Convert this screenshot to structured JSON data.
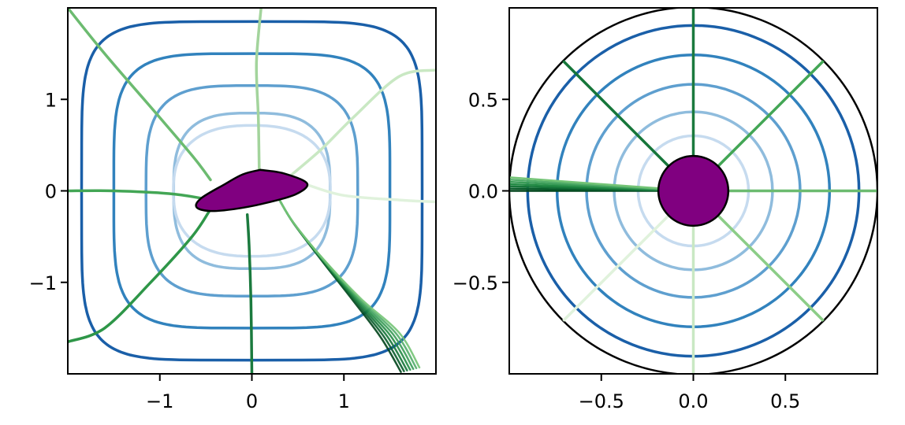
{
  "chart_data": [
    {
      "type": "line",
      "title": "",
      "xlabel": "",
      "ylabel": "",
      "xlim": [
        -2,
        2
      ],
      "ylim": [
        -2,
        2
      ],
      "xticks": [
        {
          "value": -1,
          "label": "−1"
        },
        {
          "value": 0,
          "label": "0"
        },
        {
          "value": 1,
          "label": "1"
        }
      ],
      "yticks": [
        {
          "value": 1,
          "label": "1"
        },
        {
          "value": 0,
          "label": "0"
        },
        {
          "value": -1,
          "label": "−1"
        }
      ],
      "grid": false,
      "legend": "none",
      "contours": [
        {
          "a": 1.85,
          "p": 5.5,
          "color": "#1a5fa8"
        },
        {
          "a": 1.5,
          "p": 4.5,
          "color": "#3182bd"
        },
        {
          "a": 1.15,
          "p": 3.6,
          "color": "#5e9fcf"
        },
        {
          "a": 0.85,
          "p": 3.0,
          "color": "#8fbcdd"
        },
        {
          "a": 0.55,
          "p": 2.5,
          "color": "#c6dbef",
          "sx": 1.55,
          "sy": 1.3
        }
      ],
      "streamlines": [
        {
          "color": "#1b7a3e",
          "points": [
            [
              0.0,
              -2.0
            ],
            [
              -0.01,
              -1.2
            ],
            [
              -0.03,
              -0.6
            ],
            [
              -0.05,
              -0.26
            ]
          ]
        },
        {
          "color": "#2e9648",
          "points": [
            [
              -2.0,
              -1.65
            ],
            [
              -1.6,
              -1.5
            ],
            [
              -1.1,
              -1.0
            ],
            [
              -0.65,
              -0.5
            ],
            [
              -0.45,
              -0.2
            ]
          ]
        },
        {
          "color": "#43a655",
          "points": [
            [
              -2.0,
              0.0
            ],
            [
              -1.5,
              0.0
            ],
            [
              -0.9,
              -0.03
            ],
            [
              -0.55,
              -0.08
            ]
          ]
        },
        {
          "color": "#6cbb70",
          "points": [
            [
              -2.0,
              2.0
            ],
            [
              -1.6,
              1.5
            ],
            [
              -1.0,
              0.8
            ],
            [
              -0.62,
              0.35
            ],
            [
              -0.45,
              0.12
            ]
          ]
        },
        {
          "color": "#a3d49c",
          "points": [
            [
              0.1,
              2.0
            ],
            [
              0.05,
              1.4
            ],
            [
              0.07,
              0.8
            ],
            [
              0.08,
              0.24
            ]
          ]
        },
        {
          "color": "#c9e8c3",
          "points": [
            [
              2.0,
              1.32
            ],
            [
              1.6,
              1.25
            ],
            [
              1.1,
              0.8
            ],
            [
              0.75,
              0.45
            ],
            [
              0.4,
              0.15
            ]
          ]
        },
        {
          "color": "#e0f2dc",
          "points": [
            [
              2.0,
              -0.12
            ],
            [
              1.6,
              -0.1
            ],
            [
              1.0,
              -0.05
            ],
            [
              0.62,
              0.06
            ]
          ]
        }
      ],
      "fan": {
        "from": [
          [
            0.3,
            -0.1
          ],
          [
            0.45,
            -0.35
          ],
          [
            0.75,
            -0.75
          ],
          [
            1.1,
            -1.2
          ],
          [
            1.4,
            -1.6
          ]
        ],
        "tips": [
          [
            1.62,
            -1.98
          ],
          [
            1.82,
            -1.93
          ]
        ],
        "colors": [
          "#00441b",
          "#0a5d2c",
          "#16763a",
          "#238b45",
          "#3a9c58",
          "#52ad6a",
          "#74c476"
        ]
      },
      "body": {
        "color": "#800080",
        "points": [
          [
            0.09,
            0.23
          ],
          [
            0.35,
            0.19
          ],
          [
            0.6,
            0.08
          ],
          [
            0.47,
            -0.04
          ],
          [
            0.12,
            -0.14
          ],
          [
            -0.2,
            -0.2
          ],
          [
            -0.45,
            -0.22
          ],
          [
            -0.6,
            -0.18
          ],
          [
            -0.55,
            -0.08
          ],
          [
            -0.3,
            0.07
          ],
          [
            -0.1,
            0.18
          ]
        ]
      }
    },
    {
      "type": "line",
      "title": "",
      "xlabel": "",
      "ylabel": "",
      "xlim": [
        -1,
        1
      ],
      "ylim": [
        -1,
        1
      ],
      "xticks": [
        {
          "value": -0.5,
          "label": "−0.5"
        },
        {
          "value": 0.0,
          "label": "0.0"
        },
        {
          "value": 0.5,
          "label": "0.5"
        }
      ],
      "yticks": [
        {
          "value": 0.5,
          "label": "0.5"
        },
        {
          "value": 0.0,
          "label": "0.0"
        },
        {
          "value": -0.5,
          "label": "−0.5"
        }
      ],
      "grid": false,
      "legend": "none",
      "unit_circle": {
        "r": 1.0,
        "color": "#000000"
      },
      "circles": [
        {
          "r": 0.9,
          "color": "#1a5fa8"
        },
        {
          "r": 0.74,
          "color": "#3182bd"
        },
        {
          "r": 0.58,
          "color": "#5e9fcf"
        },
        {
          "r": 0.43,
          "color": "#8fbcdd"
        },
        {
          "r": 0.3,
          "color": "#c6dbef"
        }
      ],
      "rays": [
        {
          "angle_deg": 90,
          "color": "#1b7a3e"
        },
        {
          "angle_deg": 135,
          "color": "#16763a"
        },
        {
          "angle_deg": 45,
          "color": "#43a655"
        },
        {
          "angle_deg": 0,
          "color": "#6cbb70"
        },
        {
          "angle_deg": -45,
          "color": "#8ccd87"
        },
        {
          "angle_deg": -90,
          "color": "#c9e8c3"
        },
        {
          "angle_deg": -135,
          "color": "#e0f2dc"
        }
      ],
      "fan": {
        "colors": [
          "#00441b",
          "#0a5d2c",
          "#16763a",
          "#238b45",
          "#3a9c58",
          "#52ad6a",
          "#74c476"
        ],
        "angles_deg": [
          180,
          179.3,
          178.6,
          177.9,
          177.2,
          176.5,
          175.8
        ]
      },
      "disk": {
        "r": 0.19,
        "color": "#800080"
      }
    }
  ]
}
